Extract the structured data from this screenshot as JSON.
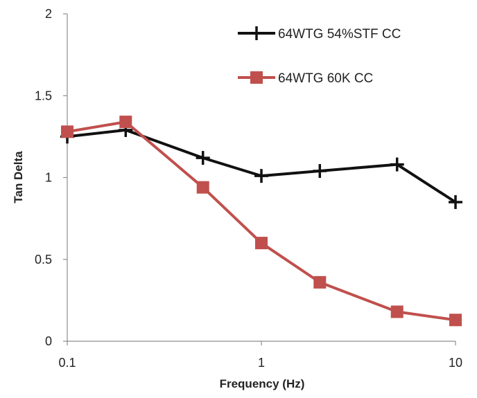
{
  "chart_data": {
    "type": "line",
    "title": "",
    "xlabel": "Frequency (Hz)",
    "ylabel": "Tan Delta",
    "xscale": "log",
    "xlim": [
      0.1,
      10
    ],
    "ylim": [
      0,
      2
    ],
    "x_ticks": [
      0.1,
      1,
      10
    ],
    "x_tick_labels": [
      "0.1",
      "1",
      "10"
    ],
    "y_ticks": [
      0,
      0.5,
      1,
      1.5,
      2
    ],
    "y_tick_labels": [
      "0",
      "0.5",
      "1",
      "1.5",
      "2"
    ],
    "grid": false,
    "legend_position": "top-right",
    "series": [
      {
        "name": "64WTG 54%STF CC",
        "color": "#111111",
        "marker": "plus",
        "x": [
          0.1,
          0.2,
          0.5,
          1,
          2,
          5,
          10
        ],
        "y": [
          1.25,
          1.29,
          1.12,
          1.01,
          1.04,
          1.08,
          0.85
        ]
      },
      {
        "name": "64WTG 60K CC",
        "color": "#c0504d",
        "marker": "square",
        "x": [
          0.1,
          0.2,
          0.5,
          1,
          2,
          5,
          10
        ],
        "y": [
          1.28,
          1.34,
          0.94,
          0.6,
          0.36,
          0.18,
          0.13
        ]
      }
    ]
  }
}
